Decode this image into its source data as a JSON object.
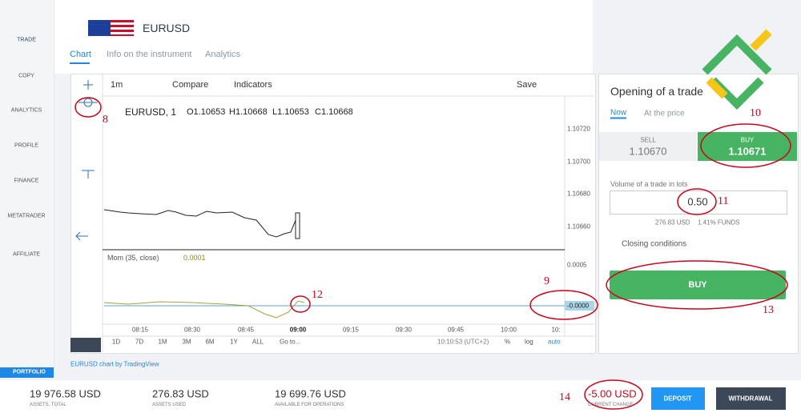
{
  "sidebar": {
    "items": [
      "TRADE",
      "COPY",
      "ANALYTICS",
      "PROFILE",
      "FINANCE",
      "METATRADER",
      "AFFILIATE"
    ],
    "portfolio": "PORTFOLIO"
  },
  "header": {
    "symbol": "EURUSD",
    "tabs": [
      "Chart",
      "Info on the instrument",
      "Analytics"
    ]
  },
  "chart": {
    "toolbar": {
      "interval": "1m",
      "compare": "Compare",
      "indicators": "Indicators",
      "save": "Save"
    },
    "legend": {
      "symbol": "EURUSD, 1",
      "open": "O1.10653",
      "high": "H1.10668",
      "low": "L1.10653",
      "close": "C1.10668"
    },
    "price_axis": [
      "1.10720",
      "1.10700",
      "1.10680",
      "1.10660"
    ],
    "indicator": {
      "name": "Mom (35, close)",
      "value": "0.0001",
      "axis": [
        "0.0005",
        "-0.0000"
      ]
    },
    "time_axis": [
      "08:15",
      "08:30",
      "08:45",
      "09:00",
      "09:15",
      "09:30",
      "09:45",
      "10:00",
      "10:"
    ],
    "ranges": [
      "1D",
      "7D",
      "1M",
      "3M",
      "6M",
      "1Y",
      "ALL"
    ],
    "goto": "Go to...",
    "clock": "10:10:53 (UTC+2)",
    "options": [
      "%",
      "log",
      "auto"
    ],
    "credit": "EURUSD chart by TradingView"
  },
  "trade": {
    "title": "Opening of a trade",
    "modes": [
      "Now",
      "At the price"
    ],
    "sell": {
      "label": "SELL",
      "price": "1.10670"
    },
    "buy": {
      "label": "BUY",
      "price": "1.10671"
    },
    "volume_label": "Volume of a trade in lots",
    "volume": "0.50",
    "margin": "276.83 USD",
    "funds": "1.41% FUNDS",
    "closing": "Closing conditions",
    "button": "BUY"
  },
  "footer": {
    "stats": [
      {
        "value": "19 976.58 USD",
        "label": "ASSETS, TOTAL"
      },
      {
        "value": "276.83 USD",
        "label": "ASSETS USED"
      },
      {
        "value": "19 699.76 USD",
        "label": "AVAILABLE FOR OPERATIONS"
      }
    ],
    "change": {
      "value": "-5.00 USD",
      "label": "CURRENT CHANGE"
    },
    "buttons": [
      "DEPOSIT",
      "WITHDRAWAL"
    ]
  },
  "annotations": [
    "8",
    "9",
    "10",
    "11",
    "12",
    "13",
    "14"
  ]
}
